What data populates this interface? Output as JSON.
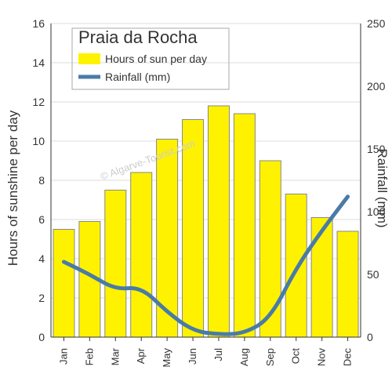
{
  "chart": {
    "type": "bar-line-combo",
    "title": "Praia da Rocha",
    "title_fontsize": 22,
    "watermark": "© Algarve-Tourist.com",
    "background_color": "#ffffff",
    "plot_background_color": "#ffffff",
    "grid_color": "#dddddd",
    "axis_color": "#333333",
    "left_axis": {
      "label": "Hours of sunshine per day",
      "label_fontsize": 17,
      "min": 0,
      "max": 16,
      "tick_step": 2
    },
    "right_axis": {
      "label": "Rainfall (mm)",
      "label_fontsize": 17,
      "min": 0,
      "max": 250,
      "tick_step": 50
    },
    "categories": [
      "Jan",
      "Feb",
      "Mar",
      "Apr",
      "May",
      "Jun",
      "Jul",
      "Aug",
      "Sep",
      "Oct",
      "Nov",
      "Dec"
    ],
    "bars": {
      "label": "Hours of sun per day",
      "values": [
        5.5,
        5.9,
        7.5,
        8.4,
        10.1,
        11.1,
        11.8,
        11.4,
        9.0,
        7.3,
        6.1,
        5.4
      ],
      "fill_color": "#fff200",
      "border_color": "#888888",
      "bar_width": 0.82
    },
    "line": {
      "label": "Rainfall (mm)",
      "values": [
        60,
        50,
        38,
        40,
        20,
        5,
        2,
        3,
        15,
        55,
        85,
        112
      ],
      "stroke_color": "#4a7ba6",
      "stroke_width": 5
    },
    "legend": {
      "bar_swatch_color": "#fff200",
      "line_swatch_color": "#4a7ba6"
    }
  }
}
